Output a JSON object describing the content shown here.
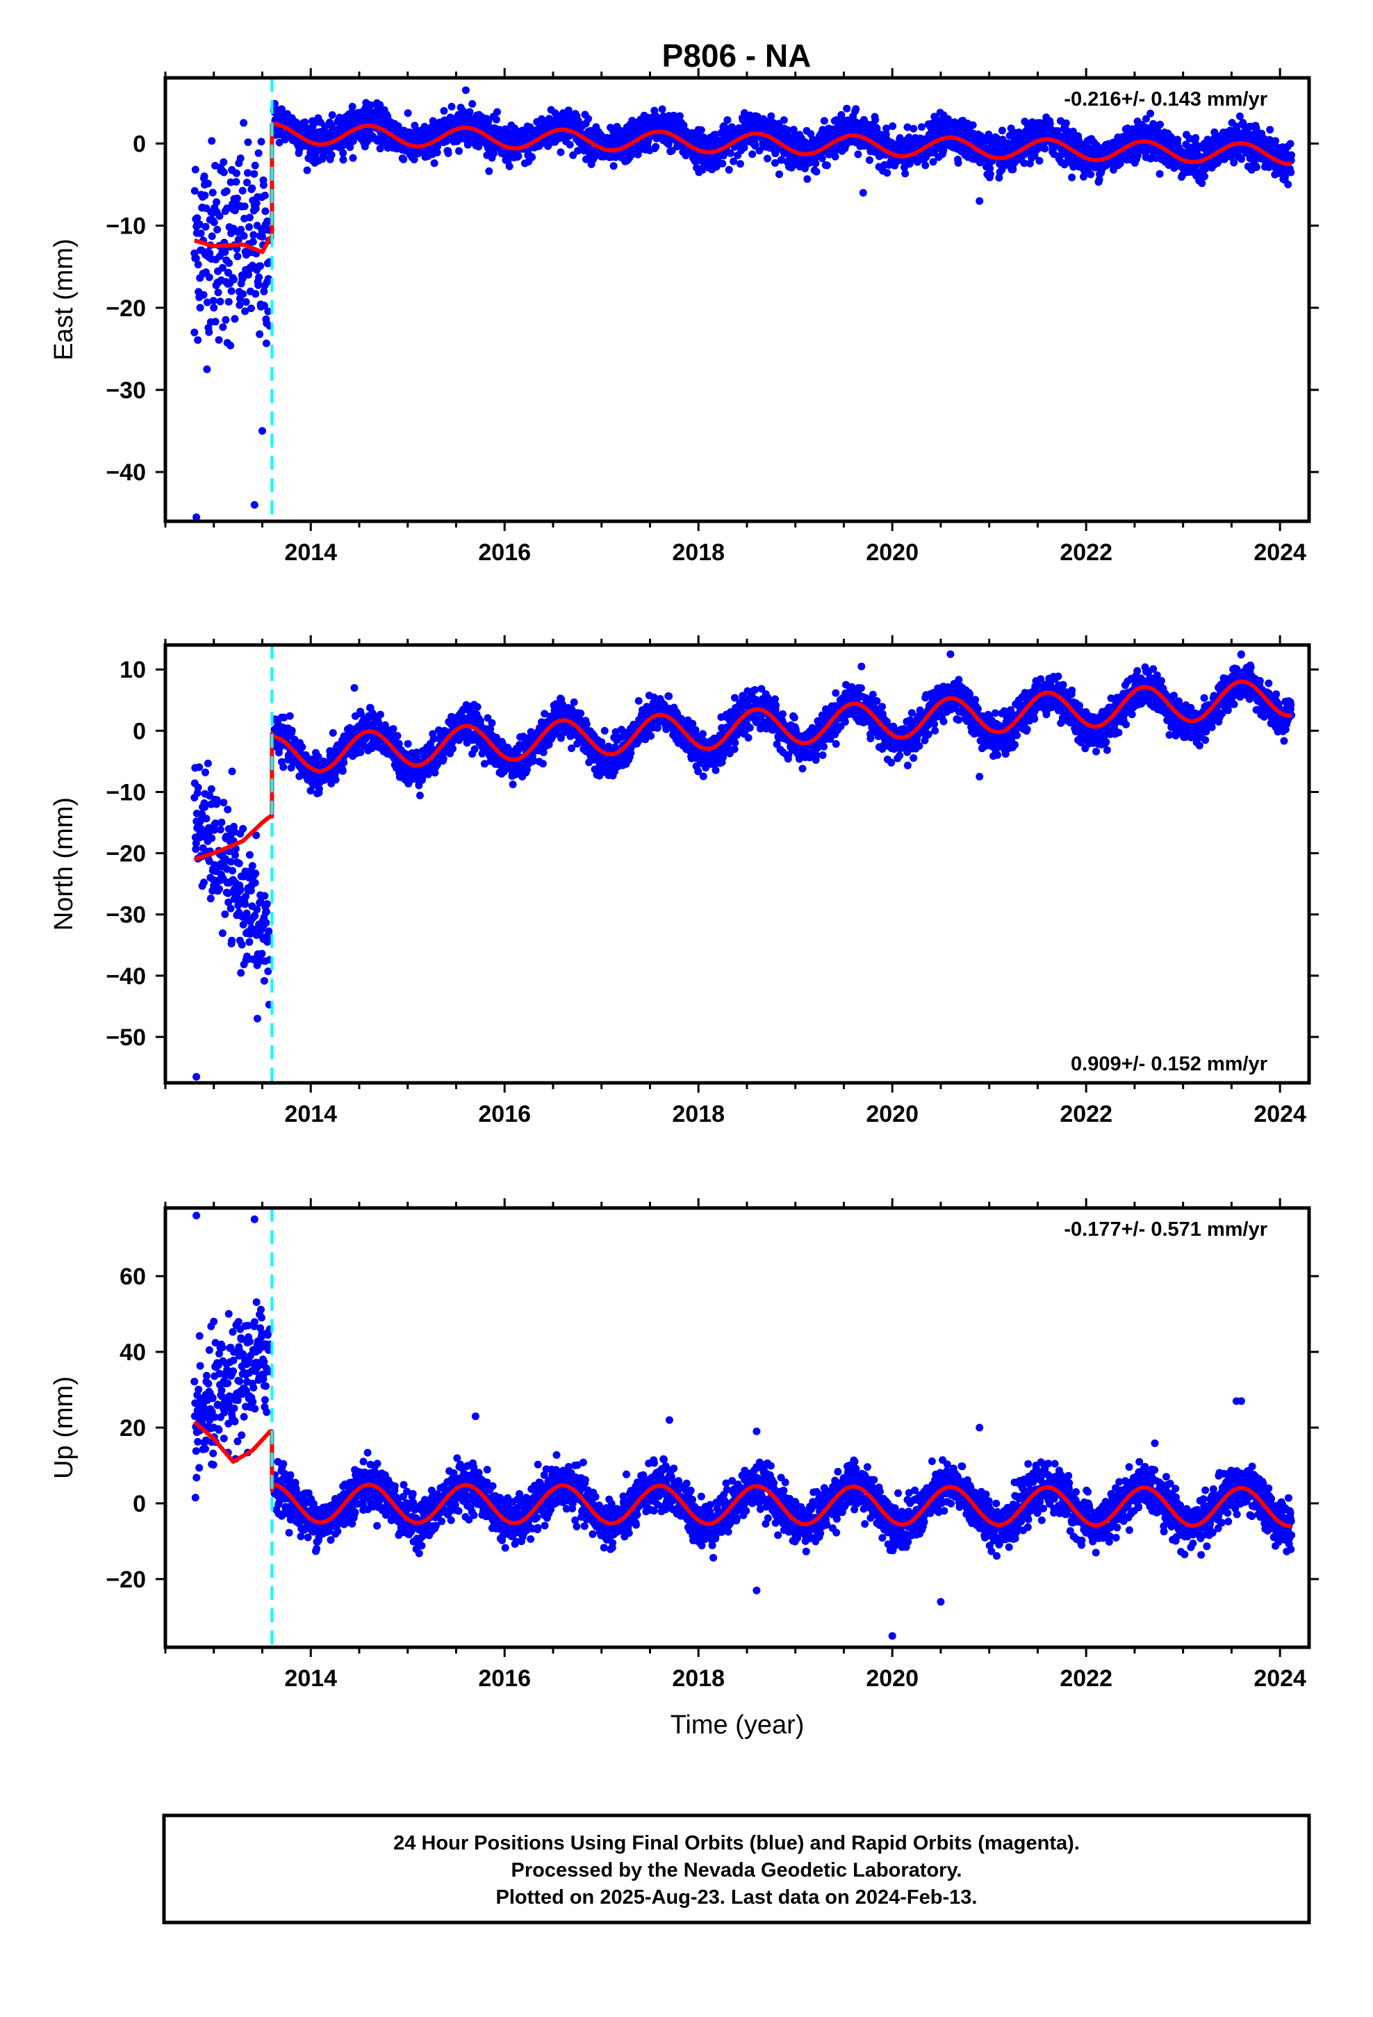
{
  "title": "P806 - NA",
  "caption": {
    "line1": "24 Hour Positions Using Final Orbits (blue) and Rapid Orbits (magenta).",
    "line2": "Processed by the Nevada Geodetic Laboratory.",
    "line3": "Plotted on 2025-Aug-23. Last data on 2024-Feb-13."
  },
  "colors": {
    "observations": "#0000ff",
    "model": "#ff0000",
    "offset_marker": "#00ffff",
    "frame": "#000000"
  },
  "chart_data": [
    {
      "type": "scatter",
      "component": "east",
      "ylabel": "East (mm)",
      "xlabel": "",
      "rate_text": "-0.216+/- 0.143 mm/yr",
      "rate_position": "top-right",
      "xlim": [
        2012.5,
        2024.3
      ],
      "ylim": [
        -46,
        8
      ],
      "xticks": [
        2014,
        2016,
        2018,
        2020,
        2022,
        2024
      ],
      "xtick_labels": [
        "2014",
        "2016",
        "2018",
        "2020",
        "2022",
        "2024"
      ],
      "yticks": [
        0,
        -10,
        -20,
        -30,
        -40
      ],
      "ytick_labels": [
        "0",
        "−10",
        "−20",
        "−30",
        "−40"
      ],
      "offset_epoch": 2013.6,
      "pre_offset": {
        "start": 2012.8,
        "end": 2013.58,
        "level_start": -11.5,
        "level_end": -13.0,
        "scatter": 6,
        "outliers": [
          [
            2012.82,
            -45.5
          ],
          [
            2012.8,
            -23
          ],
          [
            2013.42,
            -44
          ],
          [
            2013.5,
            -35
          ]
        ]
      },
      "post_offset": {
        "start": 2013.62,
        "end": 2024.12,
        "level_start": 1.5,
        "level_end": -1.0,
        "seasonal_amp": 1.3,
        "scatter": 1.1,
        "outliers": [
          [
            2015.6,
            6.5
          ],
          [
            2019.7,
            -6
          ],
          [
            2020.9,
            -7
          ]
        ]
      },
      "model_curve": {
        "pre": [
          [
            2012.8,
            -11.8
          ],
          [
            2013.0,
            -12.5
          ],
          [
            2013.3,
            -12.3
          ],
          [
            2013.5,
            -13.2
          ],
          [
            2013.58,
            -11.5
          ]
        ],
        "jump_to": 2.3,
        "trend_start": 1.2,
        "trend_end": -1.3,
        "seasonal_amp": 1.2
      }
    },
    {
      "type": "scatter",
      "component": "north",
      "ylabel": "North (mm)",
      "xlabel": "",
      "rate_text": "0.909+/- 0.152 mm/yr",
      "rate_position": "bottom-right",
      "xlim": [
        2012.5,
        2024.3
      ],
      "ylim": [
        -57.5,
        14
      ],
      "xticks": [
        2014,
        2016,
        2018,
        2020,
        2022,
        2024
      ],
      "xtick_labels": [
        "2014",
        "2016",
        "2018",
        "2020",
        "2022",
        "2024"
      ],
      "yticks": [
        10,
        0,
        -10,
        -20,
        -30,
        -40,
        -50
      ],
      "ytick_labels": [
        "10",
        "0",
        "−10",
        "−20",
        "−30",
        "−40",
        "−50"
      ],
      "offset_epoch": 2013.6,
      "pre_offset": {
        "start": 2012.8,
        "end": 2013.58,
        "level_start": -14,
        "level_end": -35,
        "scatter": 5,
        "outliers": [
          [
            2012.82,
            -56.5
          ],
          [
            2013.45,
            -47
          ]
        ]
      },
      "post_offset": {
        "start": 2013.62,
        "end": 2024.12,
        "level_start": -4,
        "level_end": 5,
        "seasonal_amp": 3.3,
        "scatter": 1.5,
        "outliers": [
          [
            2014.45,
            7
          ],
          [
            2020.6,
            12.5
          ],
          [
            2023.6,
            12.5
          ],
          [
            2020.9,
            -7.5
          ]
        ]
      },
      "model_curve": {
        "pre": [
          [
            2012.8,
            -21
          ],
          [
            2013.0,
            -20
          ],
          [
            2013.3,
            -18
          ],
          [
            2013.5,
            -15
          ],
          [
            2013.58,
            -14
          ]
        ],
        "jump_to": -0.5,
        "trend_start": -4,
        "trend_end": 5.5,
        "seasonal_amp": 3.0
      }
    },
    {
      "type": "scatter",
      "component": "up",
      "ylabel": "Up (mm)",
      "xlabel": "Time (year)",
      "rate_text": "-0.177+/- 0.571 mm/yr",
      "rate_position": "top-right",
      "xlim": [
        2012.5,
        2024.3
      ],
      "ylim": [
        -38,
        78
      ],
      "xticks": [
        2014,
        2016,
        2018,
        2020,
        2022,
        2024
      ],
      "xtick_labels": [
        "2014",
        "2016",
        "2018",
        "2020",
        "2022",
        "2024"
      ],
      "yticks": [
        60,
        40,
        20,
        0,
        -20
      ],
      "ytick_labels": [
        "60",
        "40",
        "20",
        "0",
        "−20"
      ],
      "offset_epoch": 2013.6,
      "pre_offset": {
        "start": 2012.8,
        "end": 2013.58,
        "level_start": 20,
        "level_end": 40,
        "scatter": 8,
        "outliers": [
          [
            2012.82,
            76
          ],
          [
            2013.42,
            75
          ],
          [
            2013.0,
            48
          ]
        ]
      },
      "post_offset": {
        "start": 2013.62,
        "end": 2024.12,
        "level_start": 0,
        "level_end": -1,
        "seasonal_amp": 5,
        "scatter": 3,
        "outliers": [
          [
            2015.7,
            23
          ],
          [
            2017.7,
            22
          ],
          [
            2018.6,
            19
          ],
          [
            2020.9,
            20
          ],
          [
            2023.55,
            27
          ],
          [
            2023.6,
            27
          ],
          [
            2018.6,
            -23
          ],
          [
            2020.5,
            -26
          ],
          [
            2020.0,
            -35
          ]
        ]
      },
      "model_curve": {
        "pre": [
          [
            2012.8,
            21.5
          ],
          [
            2013.0,
            17
          ],
          [
            2013.2,
            11
          ],
          [
            2013.4,
            14
          ],
          [
            2013.58,
            19
          ]
        ],
        "jump_to": 3.5,
        "trend_start": 0,
        "trend_end": -1,
        "seasonal_amp": 5
      }
    }
  ]
}
